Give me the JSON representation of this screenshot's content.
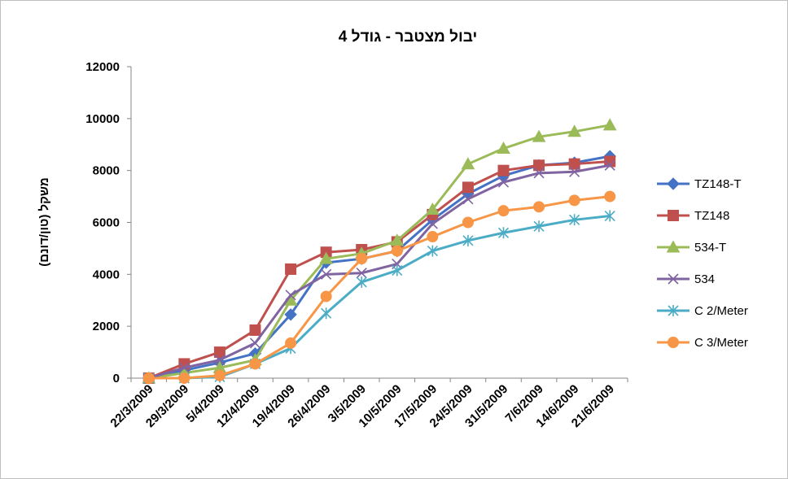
{
  "chart_data": {
    "type": "line",
    "title": "יבול מצטבר - גודל 4",
    "xlabel": "",
    "ylabel": "משקל (טון/דונם)",
    "ylim": [
      0,
      12000
    ],
    "yticks": [
      "0",
      "2000",
      "4000",
      "6000",
      "8000",
      "10000",
      "12000"
    ],
    "categories": [
      "22/3/2009",
      "29/3/2009",
      "5/4/2009",
      "12/4/2009",
      "19/4/2009",
      "26/4/2009",
      "3/5/2009",
      "10/5/2009",
      "17/5/2009",
      "24/5/2009",
      "31/5/2009",
      "7/6/2009",
      "14/6/2009",
      "21/6/2009"
    ],
    "grid": false,
    "legend_position": "right",
    "series": [
      {
        "name": "TZ148-T",
        "color": "#4472C4",
        "marker": "diamond",
        "values": [
          0,
          300,
          600,
          950,
          2450,
          4450,
          4600,
          4900,
          6100,
          7100,
          7800,
          8200,
          8300,
          8550
        ]
      },
      {
        "name": "TZ148",
        "color": "#C0504D",
        "marker": "square",
        "values": [
          0,
          550,
          1000,
          1850,
          4200,
          4850,
          4950,
          5250,
          6300,
          7350,
          8000,
          8200,
          8250,
          8350
        ]
      },
      {
        "name": "534-T",
        "color": "#9BBB59",
        "marker": "triangle",
        "values": [
          0,
          200,
          400,
          700,
          3000,
          4600,
          4800,
          5300,
          6500,
          8250,
          8850,
          9300,
          9500,
          9750
        ]
      },
      {
        "name": "534",
        "color": "#8064A2",
        "marker": "x",
        "values": [
          0,
          400,
          700,
          1350,
          3200,
          4000,
          4050,
          4400,
          5950,
          6900,
          7550,
          7900,
          7950,
          8200
        ]
      },
      {
        "name": "C 2/Meter",
        "color": "#4BACC6",
        "marker": "star",
        "values": [
          0,
          0,
          50,
          550,
          1150,
          2500,
          3700,
          4150,
          4900,
          5300,
          5600,
          5850,
          6100,
          6250
        ]
      },
      {
        "name": "C 3/Meter",
        "color": "#F79646",
        "marker": "circle",
        "values": [
          0,
          0,
          100,
          550,
          1350,
          3150,
          4600,
          4900,
          5450,
          6000,
          6450,
          6600,
          6850,
          7000
        ]
      }
    ]
  }
}
